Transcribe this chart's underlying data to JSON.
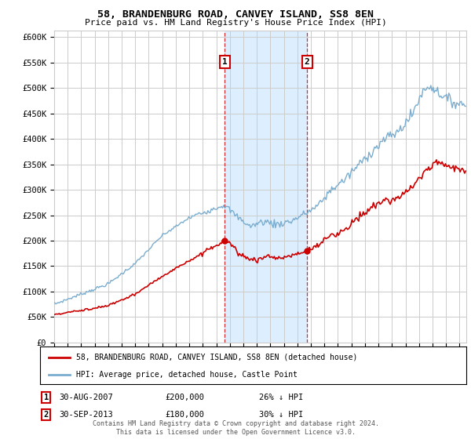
{
  "title": "58, BRANDENBURG ROAD, CANVEY ISLAND, SS8 8EN",
  "subtitle": "Price paid vs. HM Land Registry's House Price Index (HPI)",
  "ylim": [
    0,
    612500
  ],
  "yticks": [
    0,
    50000,
    100000,
    150000,
    200000,
    250000,
    300000,
    350000,
    400000,
    450000,
    500000,
    550000,
    600000
  ],
  "ytick_labels": [
    "£0",
    "£50K",
    "£100K",
    "£150K",
    "£200K",
    "£250K",
    "£300K",
    "£350K",
    "£400K",
    "£450K",
    "£500K",
    "£550K",
    "£600K"
  ],
  "sale1_date": "30-AUG-2007",
  "sale1_price": 200000,
  "sale1_pct": "26%",
  "sale2_date": "30-SEP-2013",
  "sale2_price": 180000,
  "sale2_pct": "30%",
  "legend_label1": "58, BRANDENBURG ROAD, CANVEY ISLAND, SS8 8EN (detached house)",
  "legend_label2": "HPI: Average price, detached house, Castle Point",
  "footer": "Contains HM Land Registry data © Crown copyright and database right 2024.\nThis data is licensed under the Open Government Licence v3.0.",
  "line1_color": "#cc0000",
  "line2_color": "#7aadcf",
  "shade_color": "#ddeeff",
  "annotation_box_color": "#cc0000",
  "grid_color": "#cccccc",
  "bg_color": "#ffffff"
}
